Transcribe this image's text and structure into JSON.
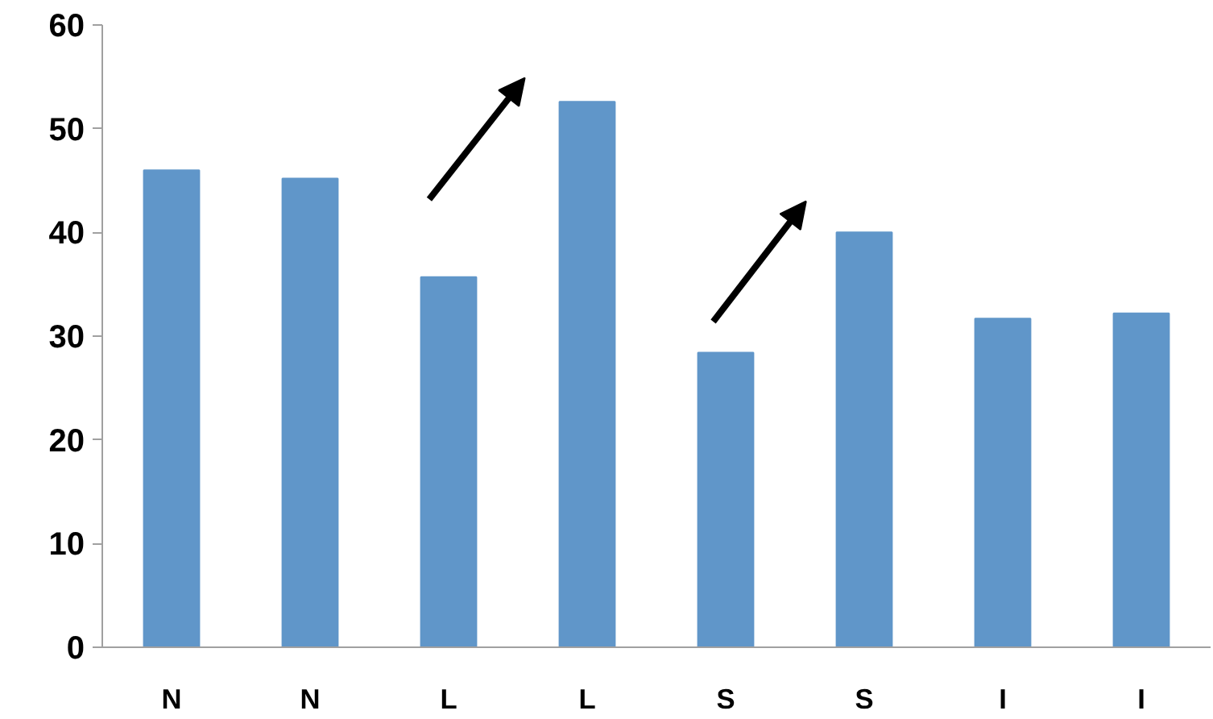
{
  "chart_data": {
    "type": "bar",
    "categories": [
      "N",
      "N",
      "L",
      "L",
      "S",
      "S",
      "I",
      "I"
    ],
    "values": [
      46.0,
      45.2,
      35.7,
      52.6,
      28.4,
      40.0,
      31.7,
      32.2
    ],
    "color": "#6096c9",
    "ylim": [
      0,
      60
    ],
    "yticks": [
      0,
      10,
      20,
      30,
      40,
      50,
      60
    ],
    "grid": false
  }
}
